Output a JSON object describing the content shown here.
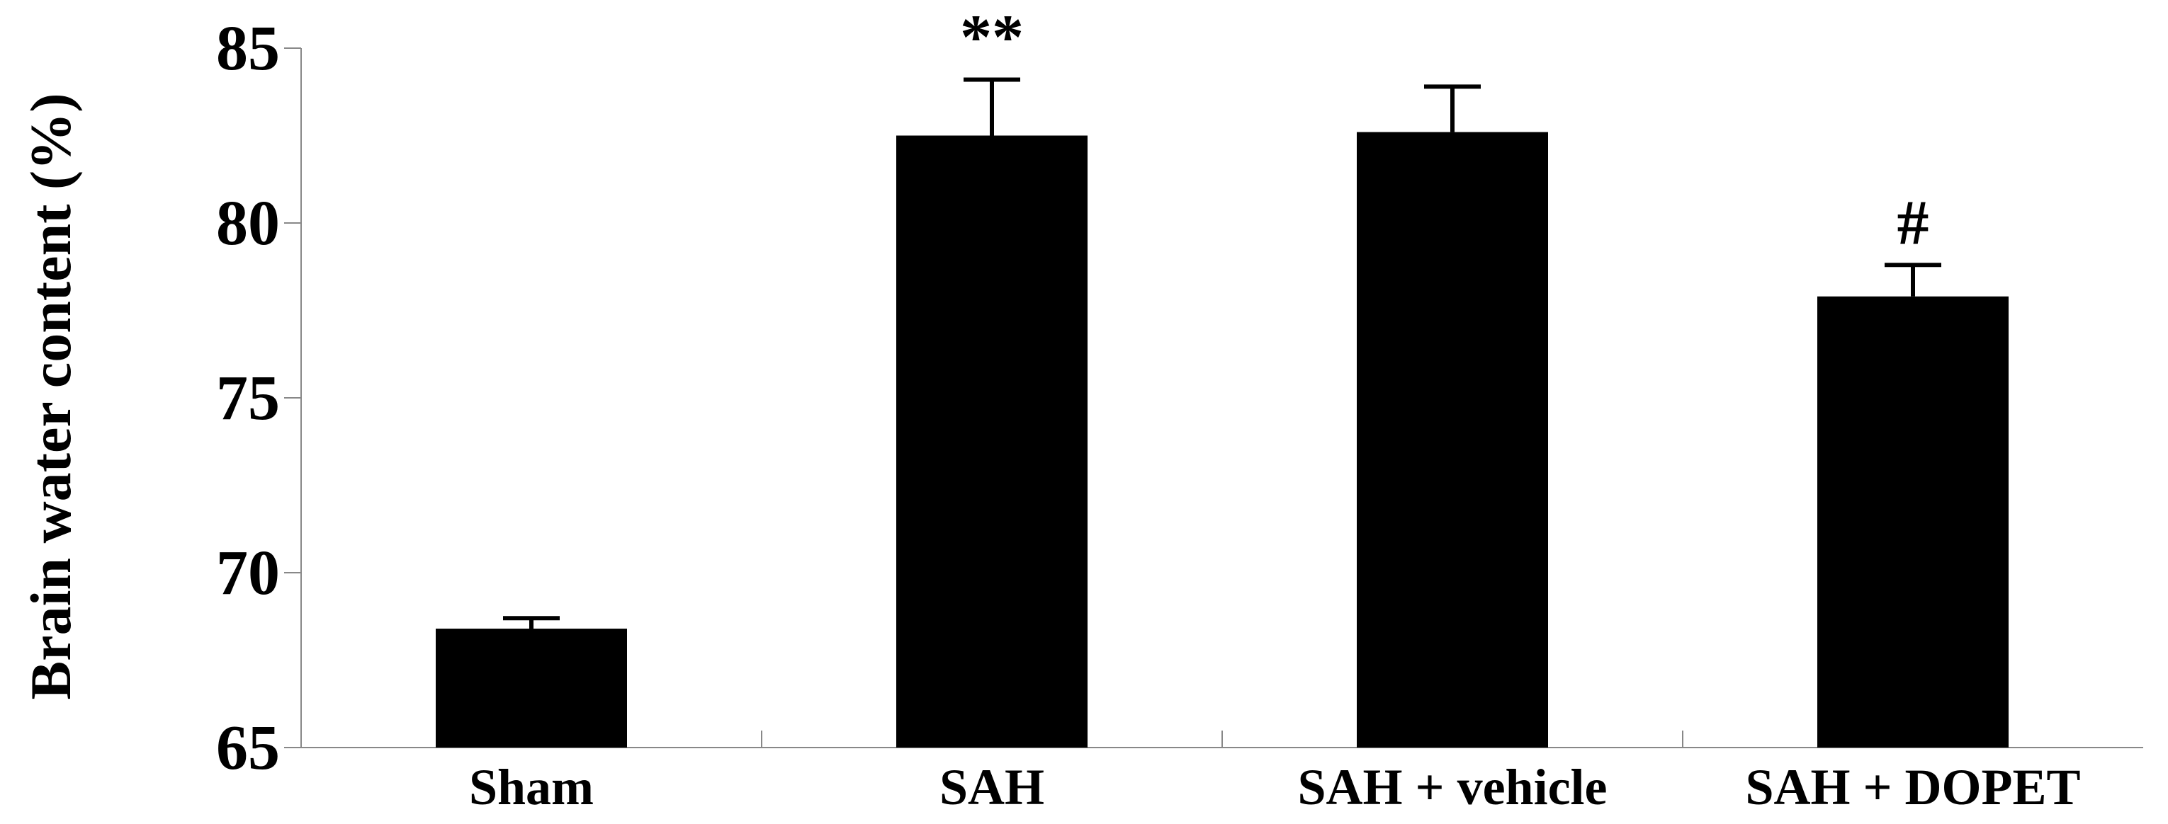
{
  "chart_data": {
    "type": "bar",
    "y_label": "Brain water content (%)",
    "categories": [
      "Sham",
      "SAH",
      "SAH + vehicle",
      "SAH + DOPET"
    ],
    "series": [
      {
        "color": "#000000",
        "values": [
          68.4,
          82.5,
          82.6,
          77.9
        ],
        "errors": [
          0.3,
          1.6,
          1.3,
          0.9
        ]
      }
    ],
    "annotations": [
      null,
      "**",
      null,
      "#"
    ],
    "ylim": [
      65,
      85
    ],
    "yticks": [
      65,
      70,
      75,
      80,
      85
    ]
  }
}
